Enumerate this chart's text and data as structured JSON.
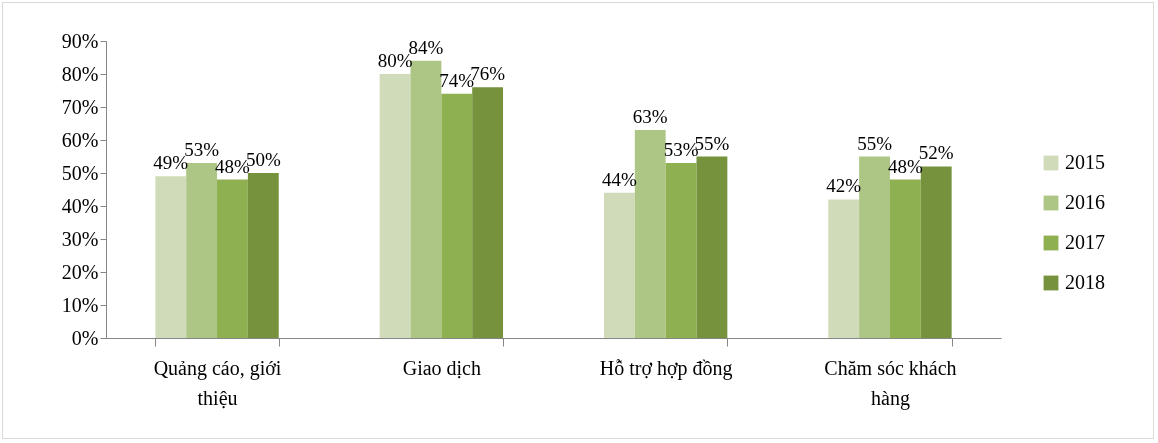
{
  "chart_data": {
    "type": "bar",
    "categories": [
      "Quảng cáo, giới thiệu",
      "Giao dịch",
      "Hỗ trợ hợp đồng",
      "Chăm sóc khách hàng"
    ],
    "series": [
      {
        "name": "2015",
        "color": "#d0dcb9",
        "values": [
          49,
          80,
          44,
          42
        ],
        "value_labels": [
          "49%",
          "80%",
          "44%",
          "42%"
        ]
      },
      {
        "name": "2016",
        "color": "#adc585",
        "values": [
          53,
          84,
          63,
          55
        ],
        "value_labels": [
          "53%",
          "84%",
          "63%",
          "55%"
        ]
      },
      {
        "name": "2017",
        "color": "#8fb050",
        "values": [
          48,
          74,
          53,
          48
        ],
        "value_labels": [
          "48%",
          "74%",
          "53%",
          "48%"
        ]
      },
      {
        "name": "2018",
        "color": "#76923c",
        "values": [
          50,
          76,
          55,
          52
        ],
        "value_labels": [
          "50%",
          "76%",
          "55%",
          "52%"
        ]
      }
    ],
    "ylim": [
      0,
      90
    ],
    "yticks": [
      {
        "value": 0,
        "label": "0%"
      },
      {
        "value": 10,
        "label": "10%"
      },
      {
        "value": 20,
        "label": "20%"
      },
      {
        "value": 30,
        "label": "30%"
      },
      {
        "value": 40,
        "label": "40%"
      },
      {
        "value": 50,
        "label": "50%"
      },
      {
        "value": 60,
        "label": "60%"
      },
      {
        "value": 70,
        "label": "70%"
      },
      {
        "value": 80,
        "label": "80%"
      },
      {
        "value": 90,
        "label": "90%"
      }
    ],
    "grid": false,
    "legend": "right"
  }
}
